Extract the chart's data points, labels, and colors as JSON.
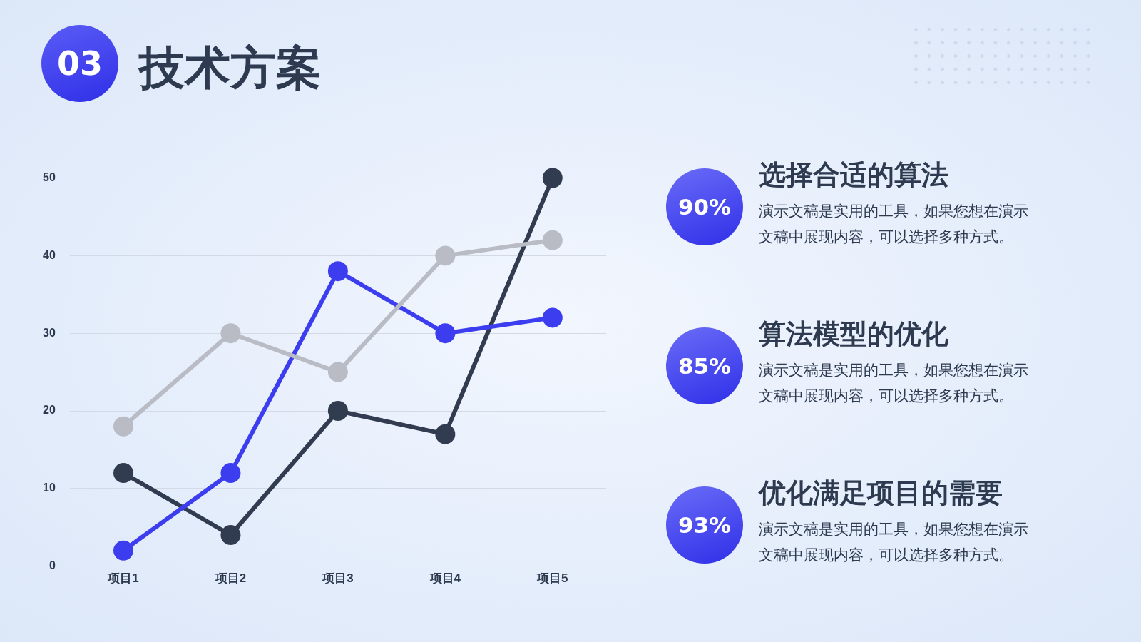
{
  "chart_data": [
    {
      "type": "line",
      "title": "技术方案",
      "annotations": [
        "03"
      ],
      "categories": [
        "项目1",
        "项目2",
        "项目3",
        "项目4",
        "项目5"
      ],
      "series": [
        {
          "color": "#b9bcc4",
          "values": [
            18,
            30,
            25,
            40,
            42
          ]
        },
        {
          "color": "#3d3df0",
          "values": [
            2,
            12,
            38,
            30,
            32
          ]
        },
        {
          "color": "#323c50",
          "values": [
            12,
            4,
            20,
            17,
            50
          ]
        }
      ],
      "ylim": [
        0,
        50
      ],
      "yticks": [
        0,
        10,
        20,
        30,
        40,
        50
      ],
      "grid": "y",
      "legend": false,
      "marker": "circle",
      "line_style": "solid"
    },
    {
      "type": "other",
      "categories": [
        "选择合适的算法",
        "算法模型的优化",
        "优化满足项目的需要"
      ],
      "value_labels": [
        "90%",
        "85%",
        "93%"
      ],
      "annotations": [
        "演示文稿是实用的工具，如果您想在演示文稿中展现内容，可以选择多种方式。",
        "演示文稿是实用的工具，如果您想在演示文稿中展现内容，可以选择多种方式。",
        "演示文稿是实用的工具，如果您想在演示文稿中展现内容，可以选择多种方式。"
      ]
    }
  ]
}
